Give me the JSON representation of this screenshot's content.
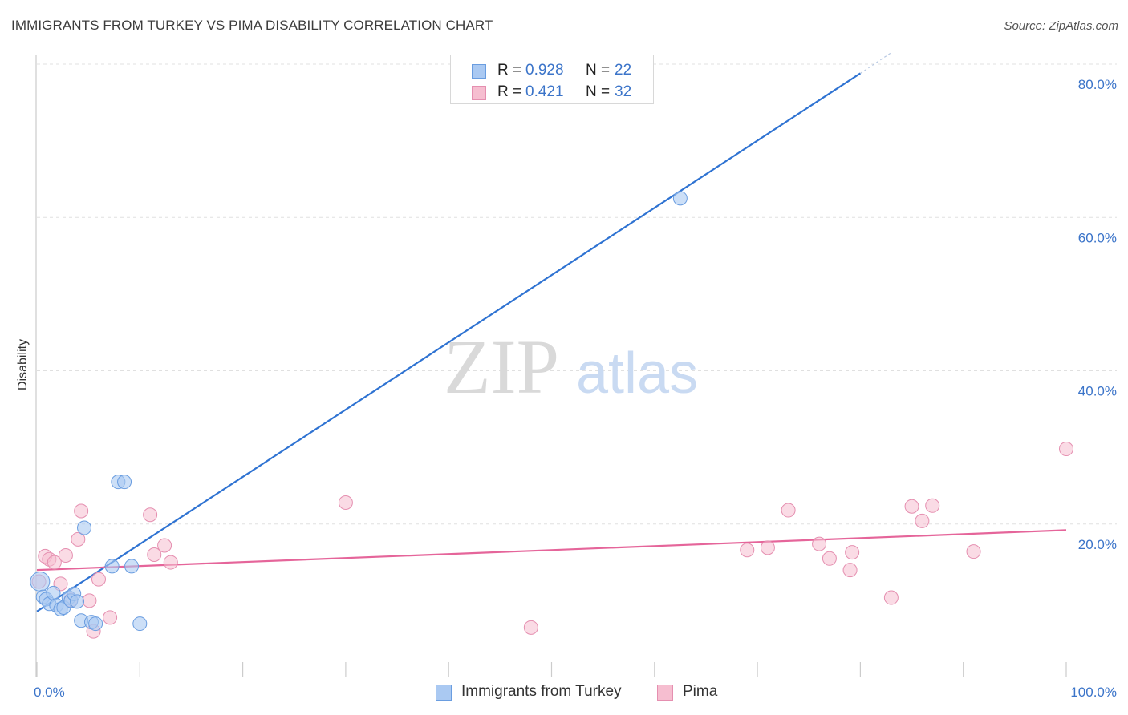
{
  "title": "IMMIGRANTS FROM TURKEY VS PIMA DISABILITY CORRELATION CHART",
  "source": "Source: ZipAtlas.com",
  "watermark": {
    "zip": "ZIP",
    "atlas": "atlas"
  },
  "colors": {
    "blue": "#3b74c9",
    "blue_line": "#2f73d2",
    "blue_fill": "#aac9f2",
    "pink": "#e5659a",
    "pink_fill": "#f6bed0",
    "grid": "#e0e0e0",
    "axis": "#cccccc"
  },
  "legend": {
    "rows": [
      {
        "r_label": "R =",
        "r_value": "0.928",
        "n_label": "N =",
        "n_value": "22"
      },
      {
        "r_label": "R =",
        "r_value": "0.421",
        "n_label": "N =",
        "n_value": "32"
      }
    ]
  },
  "bottom_legend": {
    "series1": "Immigrants from Turkey",
    "series2": "Pima"
  },
  "chart_data": {
    "type": "scatter",
    "title": "IMMIGRANTS FROM TURKEY VS PIMA DISABILITY CORRELATION CHART",
    "xlabel": "",
    "ylabel": "Disability",
    "xlim": [
      0,
      100
    ],
    "ylim": [
      0,
      80
    ],
    "x_tick_labels": [
      "0.0%",
      "100.0%"
    ],
    "y_ticks": [
      20,
      40,
      60,
      80
    ],
    "y_tick_labels": [
      "20.0%",
      "40.0%",
      "60.0%",
      "80.0%"
    ],
    "grid": true,
    "legend_position": "top-center",
    "series": [
      {
        "name": "Immigrants from Turkey",
        "color": "#3b74c9",
        "points": [
          [
            0.3,
            12.5
          ],
          [
            0.6,
            10.5
          ],
          [
            0.9,
            10.2
          ],
          [
            1.2,
            9.6
          ],
          [
            1.6,
            11.0
          ],
          [
            1.9,
            9.4
          ],
          [
            2.3,
            8.9
          ],
          [
            2.6,
            9.1
          ],
          [
            3.1,
            10.4
          ],
          [
            3.3,
            10.0
          ],
          [
            3.6,
            10.9
          ],
          [
            3.9,
            9.9
          ],
          [
            4.3,
            7.4
          ],
          [
            4.6,
            19.5
          ],
          [
            5.3,
            7.2
          ],
          [
            5.7,
            7.0
          ],
          [
            7.3,
            14.5
          ],
          [
            7.9,
            25.5
          ],
          [
            8.5,
            25.5
          ],
          [
            9.2,
            14.5
          ],
          [
            10.0,
            7.0
          ],
          [
            62.5,
            62.5
          ]
        ],
        "trend": {
          "x0": 0,
          "y0": 8.6,
          "x1": 80,
          "y1": 78.8,
          "dash_x1": 83,
          "dash_y1": 81.5
        }
      },
      {
        "name": "Pima",
        "color": "#e5659a",
        "points": [
          [
            0.2,
            12.5
          ],
          [
            0.8,
            15.8
          ],
          [
            1.2,
            15.4
          ],
          [
            1.7,
            15.0
          ],
          [
            2.3,
            12.2
          ],
          [
            2.8,
            15.9
          ],
          [
            3.3,
            10.1
          ],
          [
            4.0,
            18.0
          ],
          [
            4.3,
            21.7
          ],
          [
            5.1,
            10.0
          ],
          [
            5.5,
            6.0
          ],
          [
            6.0,
            12.8
          ],
          [
            7.1,
            7.8
          ],
          [
            11.0,
            21.2
          ],
          [
            11.4,
            16.0
          ],
          [
            12.4,
            17.2
          ],
          [
            13.0,
            15.0
          ],
          [
            30.0,
            22.8
          ],
          [
            48.0,
            6.5
          ],
          [
            69.0,
            16.6
          ],
          [
            71.0,
            16.9
          ],
          [
            73.0,
            21.8
          ],
          [
            76.0,
            17.4
          ],
          [
            77.0,
            15.5
          ],
          [
            79.0,
            14.0
          ],
          [
            79.2,
            16.3
          ],
          [
            83.0,
            10.4
          ],
          [
            85.0,
            22.3
          ],
          [
            86.0,
            20.4
          ],
          [
            87.0,
            22.4
          ],
          [
            91.0,
            16.4
          ],
          [
            100.0,
            29.8
          ]
        ],
        "trend": {
          "x0": 0,
          "y0": 14.0,
          "x1": 100,
          "y1": 19.2
        }
      }
    ]
  }
}
